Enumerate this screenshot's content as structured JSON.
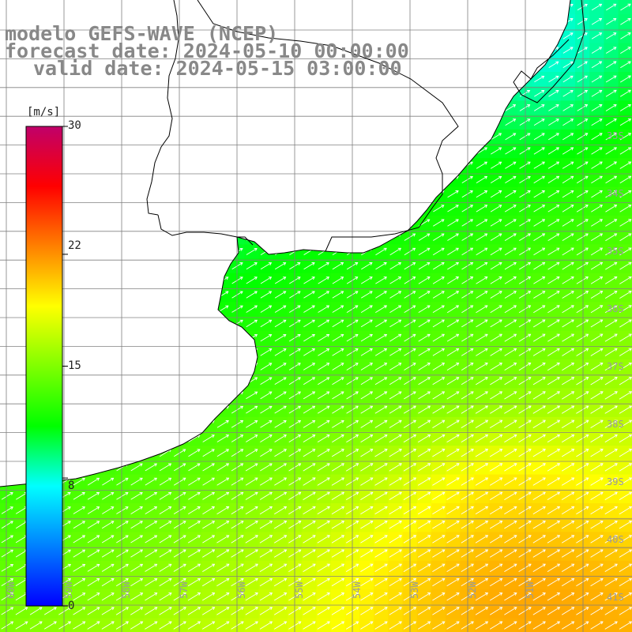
{
  "title": {
    "line1": "modelo GEFS-WAVE (NCEP)",
    "line2": "forecast date: 2024-05-10 00:00:00",
    "line3": "valid date: 2024-05-15 03:00:00"
  },
  "colorbar": {
    "unit": "[m/s]",
    "ticks": [
      "30",
      "22",
      "15",
      "8",
      "0"
    ],
    "tick_values": [
      30,
      22,
      15,
      8,
      0
    ],
    "range": [
      0,
      30
    ],
    "colors": [
      "#0000ff",
      "#0080ff",
      "#00ffff",
      "#00ff00",
      "#80ff00",
      "#ffff00",
      "#ff8000",
      "#ff0000",
      "#c0006a"
    ]
  },
  "map": {
    "variable": "wind speed",
    "lat_labels": [
      "33S",
      "34S",
      "35S",
      "36S",
      "37S",
      "38S",
      "39S",
      "40S",
      "41S"
    ],
    "lon_labels": [
      "60W",
      "59W",
      "58W",
      "57W",
      "56W",
      "55W",
      "54W",
      "53W",
      "52W",
      "51W"
    ],
    "wind_direction": "north-east",
    "land_color": "#ffffff",
    "grid_color": "#808080"
  }
}
